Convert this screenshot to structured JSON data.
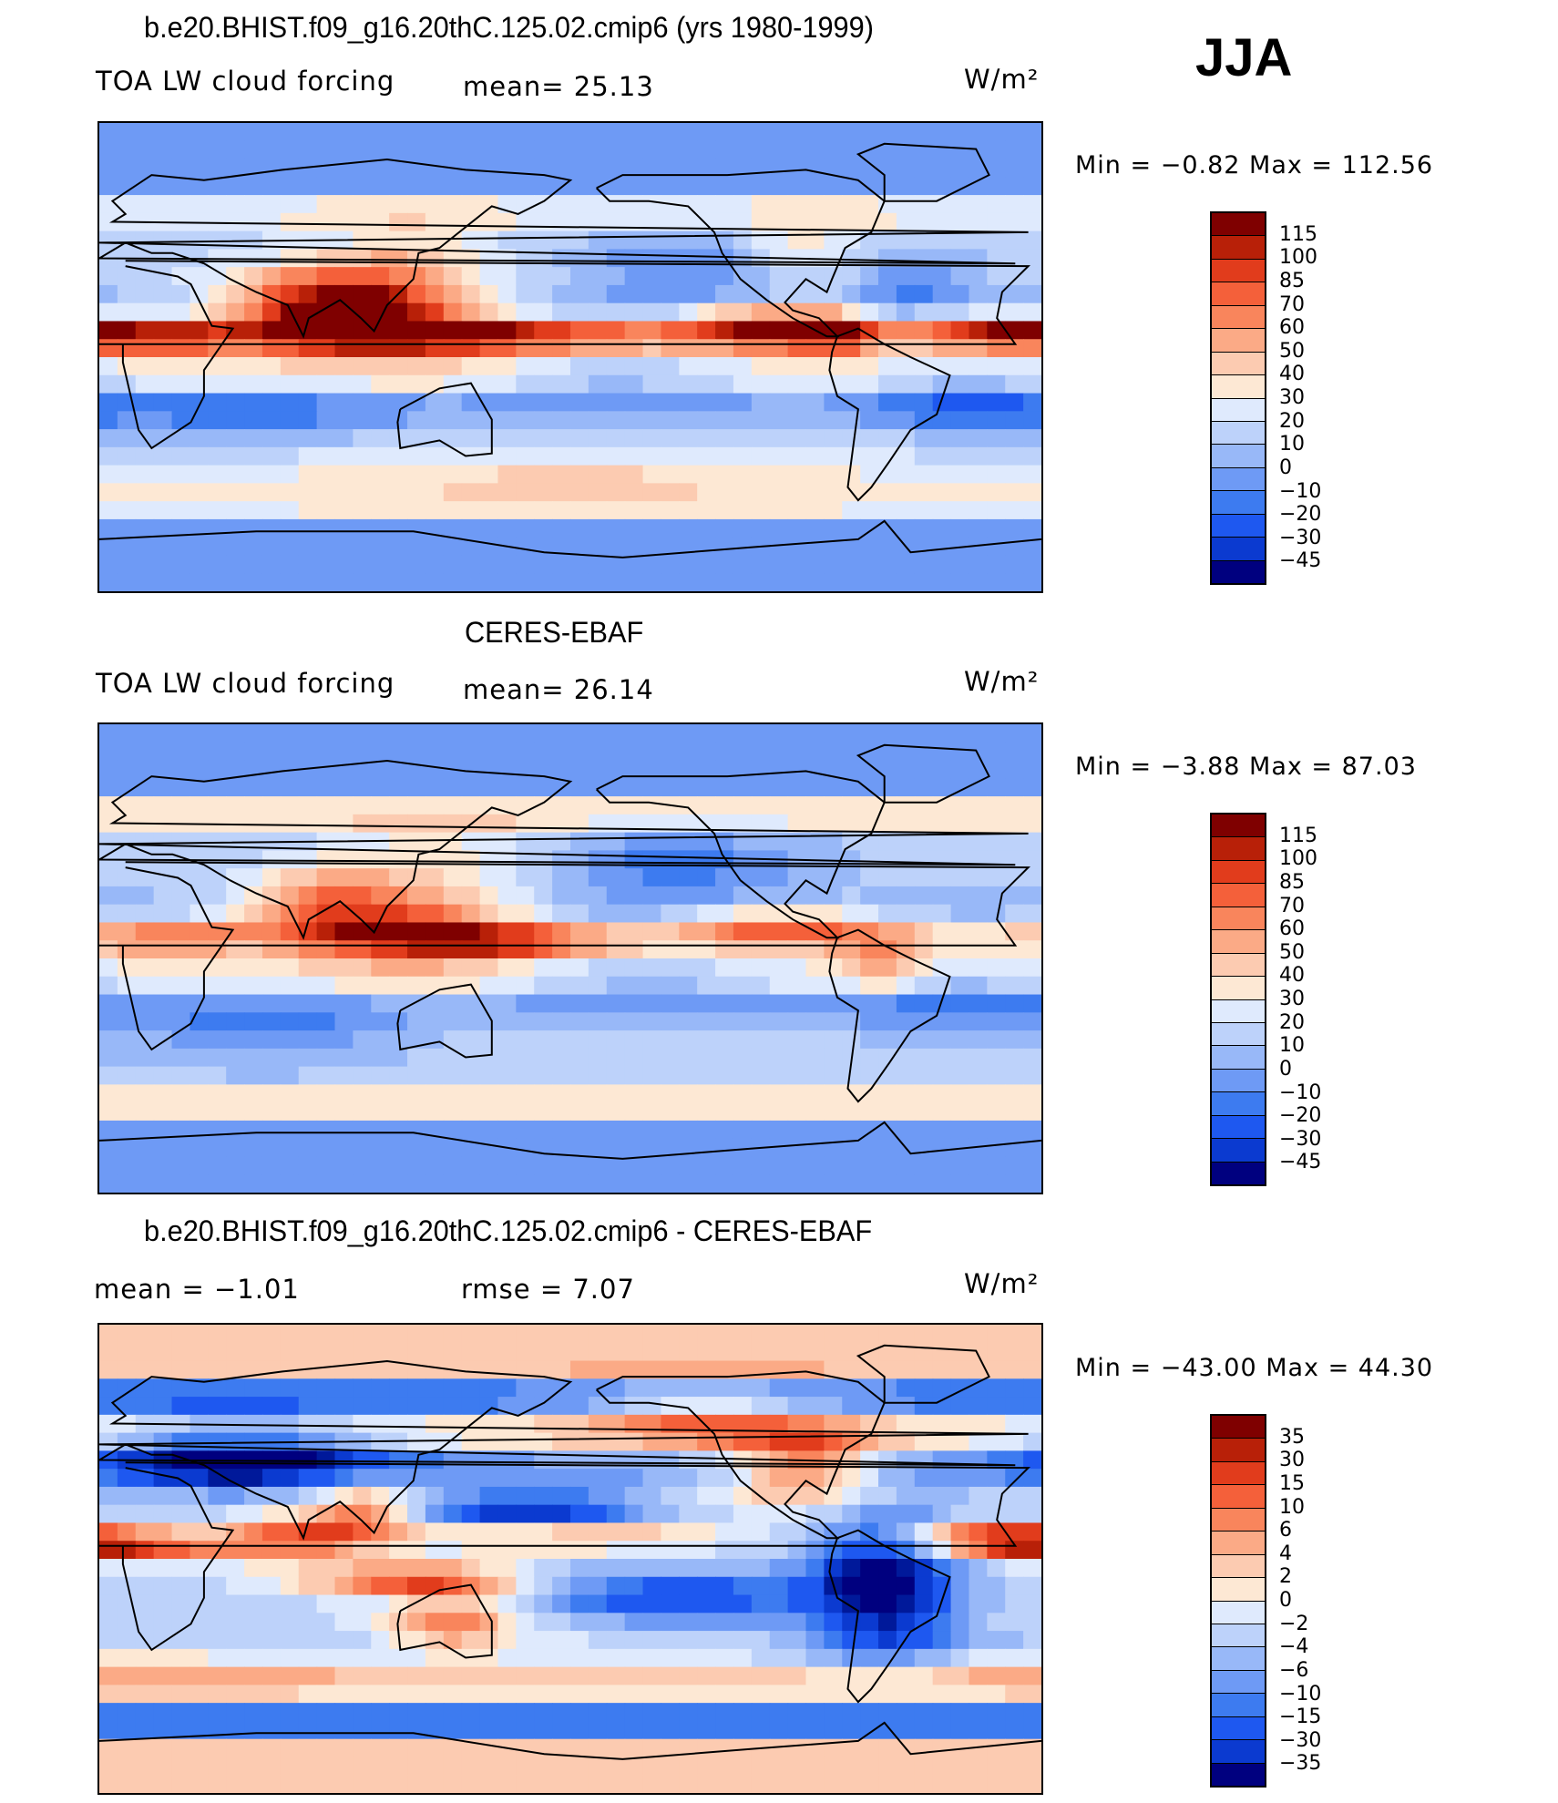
{
  "season": "JJA",
  "colors": {
    "diverging": [
      "#00007f",
      "#00199a",
      "#0b3ad0",
      "#1e58f0",
      "#3d7bf0",
      "#6e9af5",
      "#98b8f8",
      "#bdd2fa",
      "#dfeafd",
      "#fde8d4",
      "#fccbb1",
      "#fbaa86",
      "#f9855c",
      "#f4603a",
      "#e13c1c",
      "#b82008",
      "#7f0000"
    ],
    "land_outline": "#000000"
  },
  "panels": [
    {
      "title": "b.e20.BHIST.f09_g16.20thC.125.02.cmip6 (yrs 1980-1999)",
      "left_label": "TOA LW cloud forcing",
      "center_label": "mean=  25.13",
      "units": "W/m²",
      "minmax": "Min =   −0.82  Max  =  112.56",
      "map_legend": "shaded contour map",
      "colorbar": {
        "levels": [
          "115",
          "100",
          "85",
          "70",
          "60",
          "50",
          "40",
          "30",
          "20",
          "10",
          "0",
          "−10",
          "−20",
          "−30",
          "−45"
        ],
        "colors": [
          "#7f0000",
          "#b82008",
          "#e13c1c",
          "#f4603a",
          "#f9855c",
          "#fbaa86",
          "#fccbb1",
          "#fde8d4",
          "#dfeafd",
          "#bdd2fa",
          "#98b8f8",
          "#6e9af5",
          "#3d7bf0",
          "#1e58f0",
          "#0b3ad0",
          "#00007f"
        ]
      },
      "field": "model"
    },
    {
      "title": "CERES-EBAF",
      "left_label": "TOA LW cloud forcing",
      "center_label": "mean=  26.14",
      "units": "W/m²",
      "minmax": "Min =   −3.88  Max  =   87.03",
      "colorbar": {
        "levels": [
          "115",
          "100",
          "85",
          "70",
          "60",
          "50",
          "40",
          "30",
          "20",
          "10",
          "0",
          "−10",
          "−20",
          "−30",
          "−45"
        ],
        "colors": [
          "#7f0000",
          "#b82008",
          "#e13c1c",
          "#f4603a",
          "#f9855c",
          "#fbaa86",
          "#fccbb1",
          "#fde8d4",
          "#dfeafd",
          "#bdd2fa",
          "#98b8f8",
          "#6e9af5",
          "#3d7bf0",
          "#1e58f0",
          "#0b3ad0",
          "#00007f"
        ]
      },
      "field": "obs"
    },
    {
      "title": "b.e20.BHIST.f09_g16.20thC.125.02.cmip6 - CERES-EBAF",
      "left_label": "mean  =   −1.01",
      "center_label": "rmse  =    7.07",
      "units": "W/m²",
      "minmax": "Min  = −43.00  Max  =   44.30",
      "colorbar": {
        "levels": [
          "35",
          "30",
          "15",
          "10",
          "6",
          "4",
          "2",
          "0",
          "−2",
          "−4",
          "−6",
          "−10",
          "−15",
          "−30",
          "−35"
        ],
        "colors": [
          "#7f0000",
          "#b82008",
          "#e13c1c",
          "#f4603a",
          "#f9855c",
          "#fbaa86",
          "#fccbb1",
          "#fde8d4",
          "#dfeafd",
          "#bdd2fa",
          "#98b8f8",
          "#6e9af5",
          "#3d7bf0",
          "#1e58f0",
          "#0b3ad0",
          "#00007f"
        ]
      },
      "field": "diff"
    }
  ]
}
